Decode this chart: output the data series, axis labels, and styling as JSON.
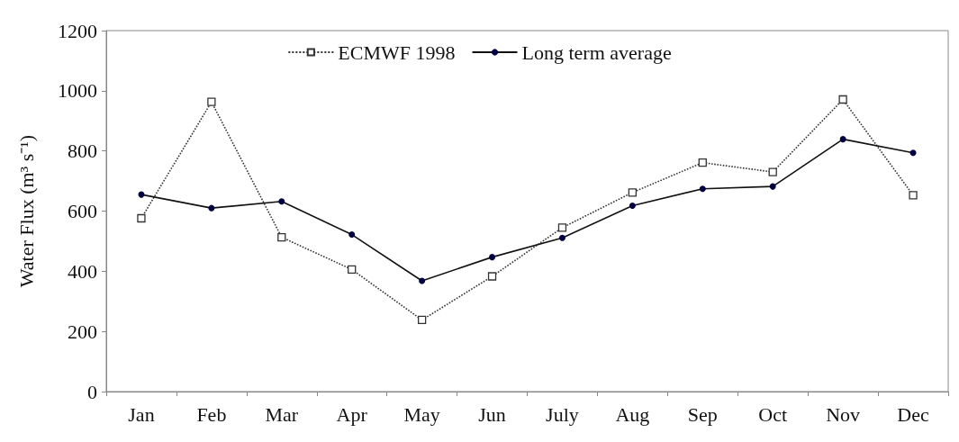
{
  "chart_data": {
    "type": "line",
    "ylabel": "Water Flux (m³ s⁻¹)",
    "categories": [
      "Jan",
      "Feb",
      "Mar",
      "Apr",
      "May",
      "Jun",
      "July",
      "Aug",
      "Sep",
      "Oct",
      "Nov",
      "Dec"
    ],
    "series": [
      {
        "name": "ECMWF 1998",
        "color": "#333333",
        "marker": "square",
        "line_style": "dotted",
        "values": [
          576,
          963,
          513,
          406,
          238,
          383,
          545,
          662,
          761,
          730,
          971,
          653
        ]
      },
      {
        "name": "Long term average",
        "color": "#000040",
        "marker": "circle",
        "line_style": "solid",
        "values": [
          655,
          610,
          632,
          522,
          368,
          447,
          511,
          618,
          674,
          682,
          839,
          794
        ]
      }
    ],
    "ylim": [
      0,
      1200
    ],
    "yticks": [
      0,
      200,
      400,
      600,
      800,
      1000,
      1200
    ],
    "grid": false,
    "legend": "top"
  }
}
